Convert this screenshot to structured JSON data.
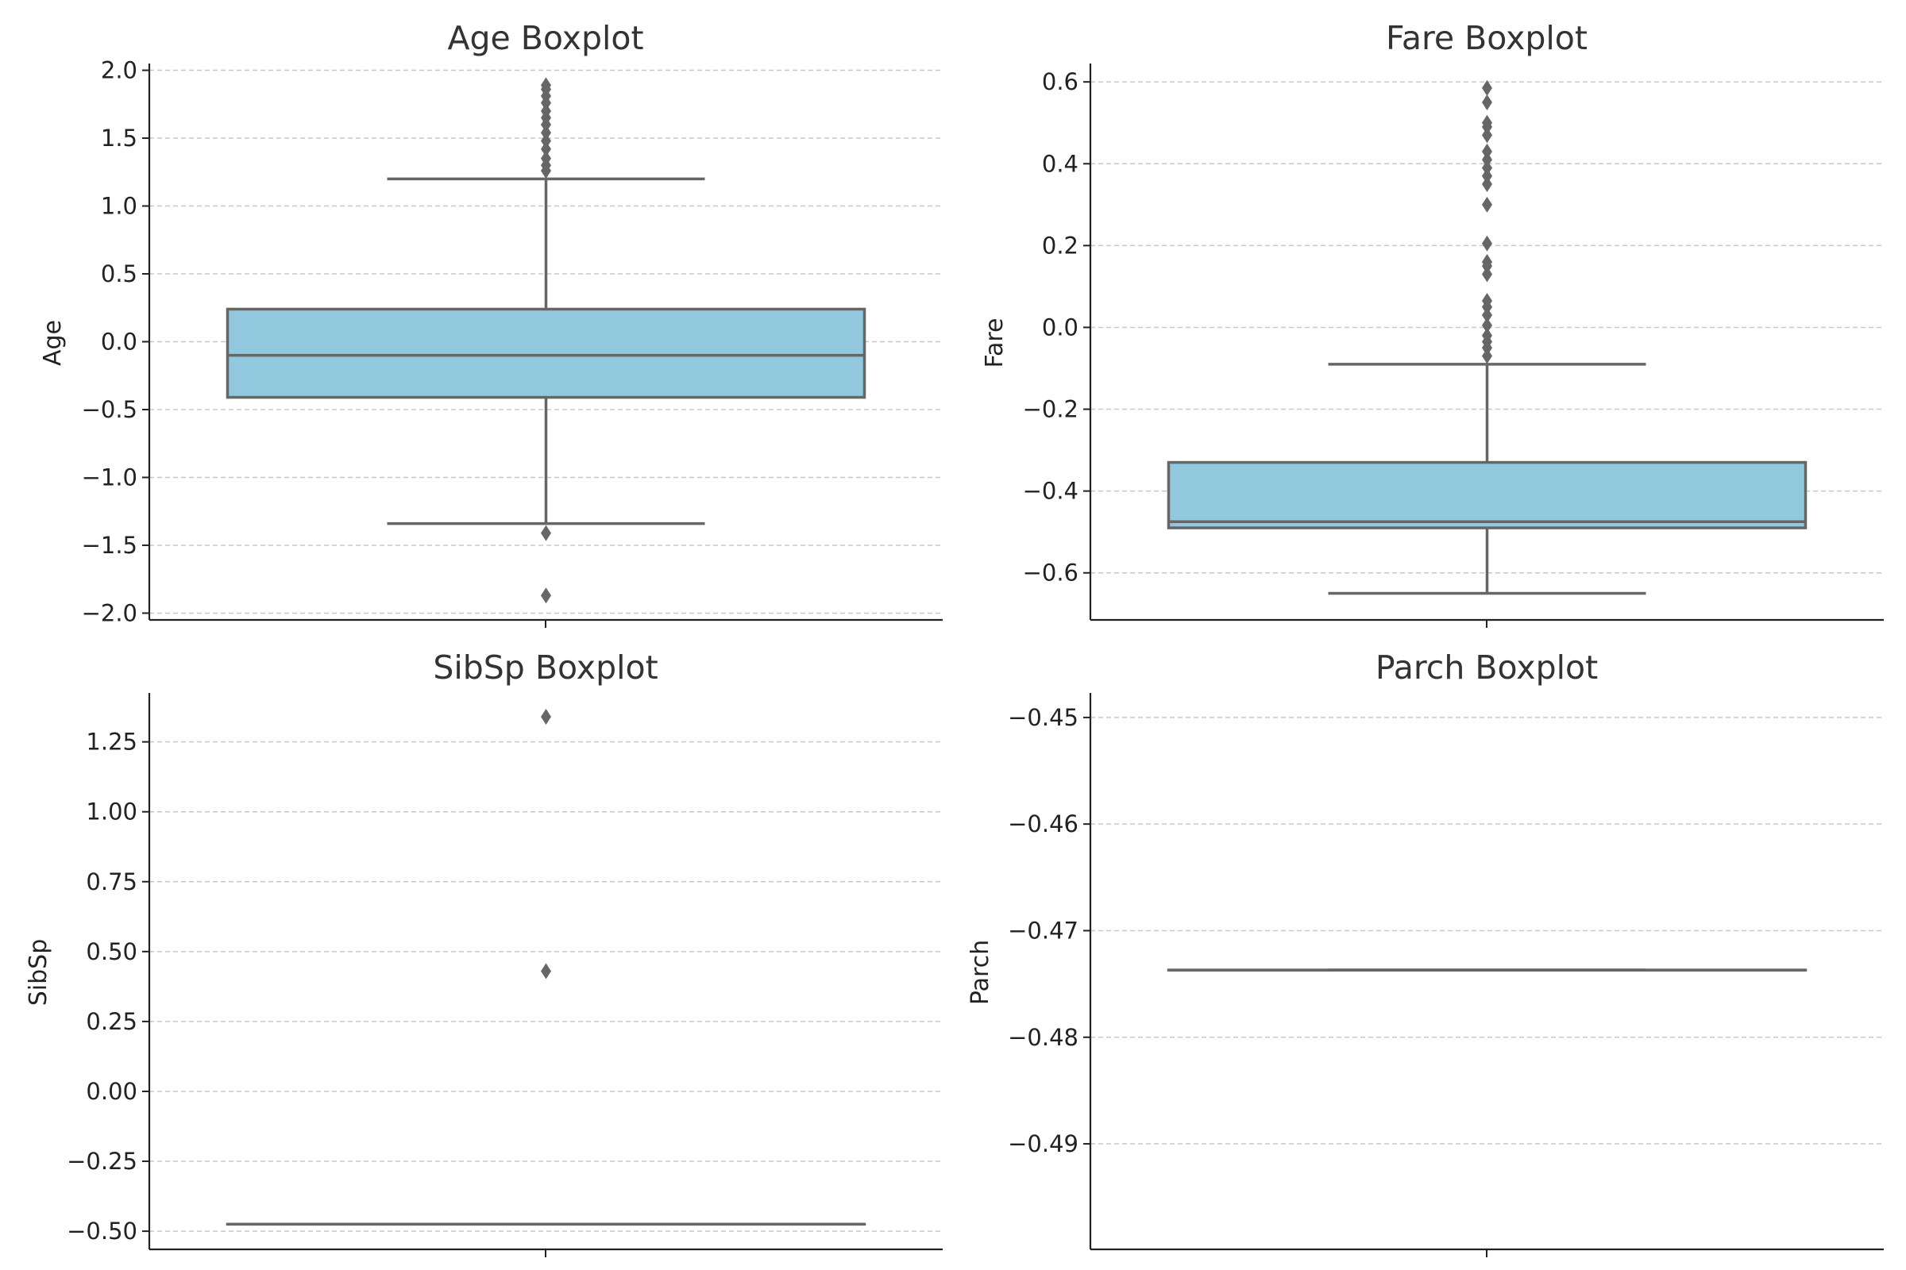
{
  "chart_data": [
    {
      "type": "box",
      "title": "Age Boxplot",
      "ylabel": "Age",
      "ylim": [
        -2.05,
        2.05
      ],
      "yticks": [
        -2.0,
        -1.5,
        -1.0,
        -0.5,
        0.0,
        0.5,
        1.0,
        1.5,
        2.0
      ],
      "tick_labels": [
        "−2.0",
        "−1.5",
        "−1.0",
        "−0.5",
        "0.0",
        "0.5",
        "1.0",
        "1.5",
        "2.0"
      ],
      "grid": true,
      "box": {
        "whisker_low": -1.34,
        "q1": -0.41,
        "median": -0.1,
        "q3": 0.24,
        "whisker_high": 1.2
      },
      "fliers": [
        -1.87,
        -1.41,
        1.26,
        1.3,
        1.35,
        1.42,
        1.48,
        1.54,
        1.6,
        1.65,
        1.7,
        1.76,
        1.81,
        1.86,
        1.89
      ],
      "box_color": "#92c8de",
      "line_color": "#666666"
    },
    {
      "type": "box",
      "title": "Fare Boxplot",
      "ylabel": "Fare",
      "ylim": [
        -0.715,
        0.645
      ],
      "yticks": [
        -0.6,
        -0.4,
        -0.2,
        0.0,
        0.2,
        0.4,
        0.6
      ],
      "tick_labels": [
        "−0.6",
        "−0.4",
        "−0.2",
        "0.0",
        "0.2",
        "0.4",
        "0.6"
      ],
      "grid": true,
      "box": {
        "whisker_low": -0.65,
        "q1": -0.49,
        "median": -0.475,
        "q3": -0.33,
        "whisker_high": -0.09
      },
      "fliers": [
        -0.07,
        -0.05,
        -0.035,
        -0.02,
        0.005,
        0.03,
        0.05,
        0.065,
        0.13,
        0.15,
        0.16,
        0.205,
        0.3,
        0.35,
        0.37,
        0.39,
        0.41,
        0.43,
        0.47,
        0.49,
        0.5,
        0.55,
        0.585
      ],
      "box_color": "#92c8de",
      "line_color": "#666666"
    },
    {
      "type": "box",
      "title": "SibSp Boxplot",
      "ylabel": "SibSp",
      "ylim": [
        -0.565,
        1.425
      ],
      "yticks": [
        -0.5,
        -0.25,
        0.0,
        0.25,
        0.5,
        0.75,
        1.0,
        1.25
      ],
      "tick_labels": [
        "−0.50",
        "−0.25",
        "0.00",
        "0.25",
        "0.50",
        "0.75",
        "1.00",
        "1.25"
      ],
      "grid": true,
      "box": {
        "whisker_low": -0.475,
        "q1": -0.475,
        "median": -0.475,
        "q3": -0.475,
        "whisker_high": -0.475
      },
      "fliers": [
        0.43,
        1.34
      ],
      "box_color": "#92c8de",
      "line_color": "#666666"
    },
    {
      "type": "box",
      "title": "Parch Boxplot",
      "ylabel": "Parch",
      "ylim": [
        -0.4999,
        -0.4477
      ],
      "yticks": [
        -0.49,
        -0.48,
        -0.47,
        -0.46,
        -0.45
      ],
      "tick_labels": [
        "−0.49",
        "−0.48",
        "−0.47",
        "−0.46",
        "−0.45"
      ],
      "grid": true,
      "box": {
        "whisker_low": -0.4737,
        "q1": -0.4737,
        "median": -0.4737,
        "q3": -0.4737,
        "whisker_high": -0.4737
      },
      "fliers": [],
      "box_color": "#92c8de",
      "line_color": "#666666"
    }
  ]
}
